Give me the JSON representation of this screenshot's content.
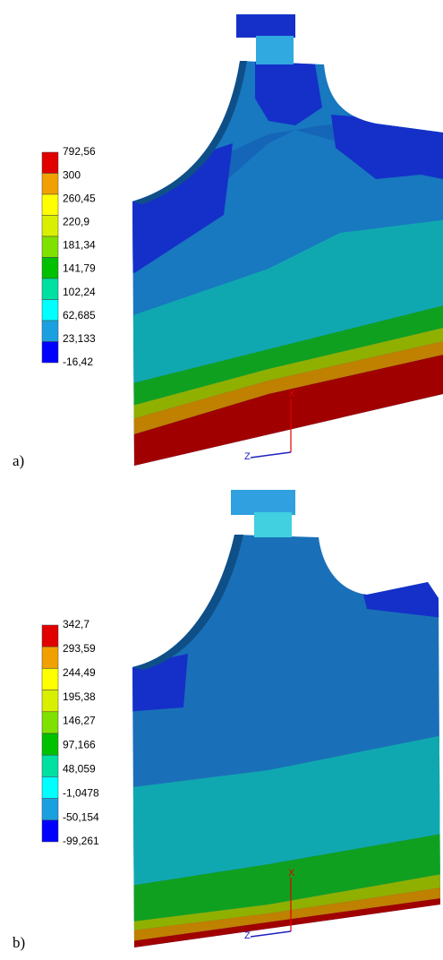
{
  "panels": [
    {
      "label": "a)",
      "legend": [
        "792,56",
        "300",
        "260,45",
        "220,9",
        "181,34",
        "141,79",
        "102,24",
        "62,685",
        "23,133",
        "-16,42"
      ],
      "axes": {
        "x": "X",
        "z": "Z"
      }
    },
    {
      "label": "b)",
      "legend": [
        "342,7",
        "293,59",
        "244,49",
        "195,38",
        "146,27",
        "97,166",
        "48,059",
        "-1,0478",
        "-50,154",
        "-99,261"
      ],
      "axes": {
        "x": "X",
        "z": "Z"
      }
    }
  ]
}
